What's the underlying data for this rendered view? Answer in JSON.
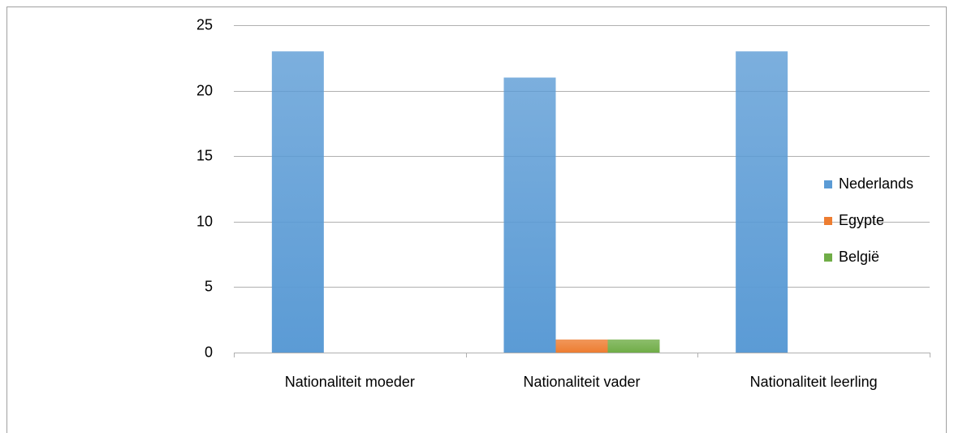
{
  "chart_data": {
    "type": "bar",
    "categories": [
      "Nationaliteit moeder",
      "Nationaliteit vader",
      "Nationaliteit leerling"
    ],
    "series": [
      {
        "name": "Nederlands",
        "color": "#5b9bd5",
        "values": [
          23,
          21,
          23
        ]
      },
      {
        "name": "Egypte",
        "color": "#ed7d31",
        "values": [
          0,
          1,
          0
        ]
      },
      {
        "name": "België",
        "color": "#70ad47",
        "values": [
          0,
          1,
          0
        ]
      }
    ],
    "ylim": [
      0,
      25
    ],
    "yticks": [
      0,
      5,
      10,
      15,
      20,
      25
    ],
    "grid": true,
    "legend": "right"
  }
}
